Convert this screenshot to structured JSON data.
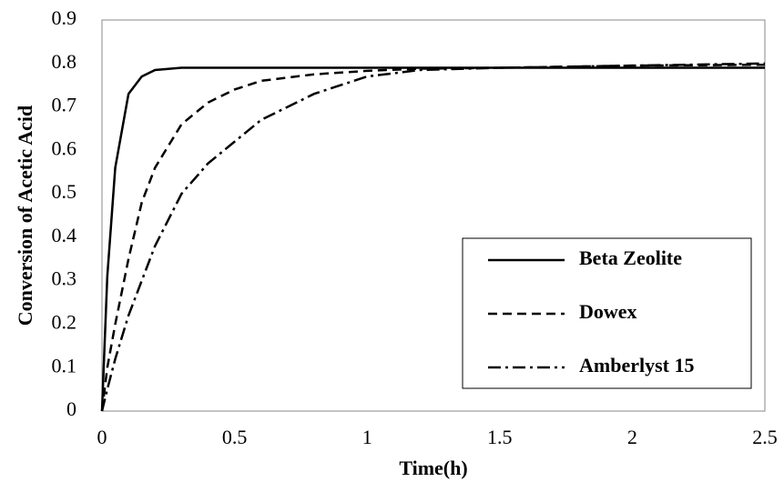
{
  "chart_data": {
    "type": "line",
    "x_label": "Time(h)",
    "y_label": "Conversion of Acetic Acid",
    "x": [
      0,
      0.02,
      0.05,
      0.1,
      0.15,
      0.2,
      0.3,
      0.4,
      0.5,
      0.6,
      0.8,
      1.0,
      1.2,
      1.5,
      2.0,
      2.5
    ],
    "series": [
      {
        "name": "Beta Zeolite",
        "color": "#000000",
        "line_style": "solid",
        "values": [
          0,
          0.31,
          0.56,
          0.73,
          0.77,
          0.785,
          0.79,
          0.79,
          0.79,
          0.79,
          0.79,
          0.79,
          0.79,
          0.79,
          0.79,
          0.79
        ]
      },
      {
        "name": "Dowex",
        "color": "#000000",
        "line_style": "dashed",
        "values": [
          0,
          0.1,
          0.2,
          0.35,
          0.48,
          0.56,
          0.66,
          0.71,
          0.74,
          0.76,
          0.775,
          0.783,
          0.788,
          0.79,
          0.795,
          0.797
        ]
      },
      {
        "name": "Amberlyst 15",
        "color": "#000000",
        "line_style": "dashdot",
        "values": [
          0,
          0.05,
          0.12,
          0.22,
          0.3,
          0.38,
          0.5,
          0.57,
          0.62,
          0.67,
          0.73,
          0.77,
          0.785,
          0.79,
          0.795,
          0.8
        ]
      }
    ],
    "xlim": [
      0,
      2.5
    ],
    "xticks": [
      0,
      0.5,
      1,
      1.5,
      2,
      2.5
    ],
    "ylim": [
      0,
      0.9
    ],
    "yticks": [
      0,
      0.1,
      0.2,
      0.3,
      0.4,
      0.5,
      0.6,
      0.7,
      0.8,
      0.9
    ],
    "grid": false,
    "legend_position": "lower-right"
  }
}
